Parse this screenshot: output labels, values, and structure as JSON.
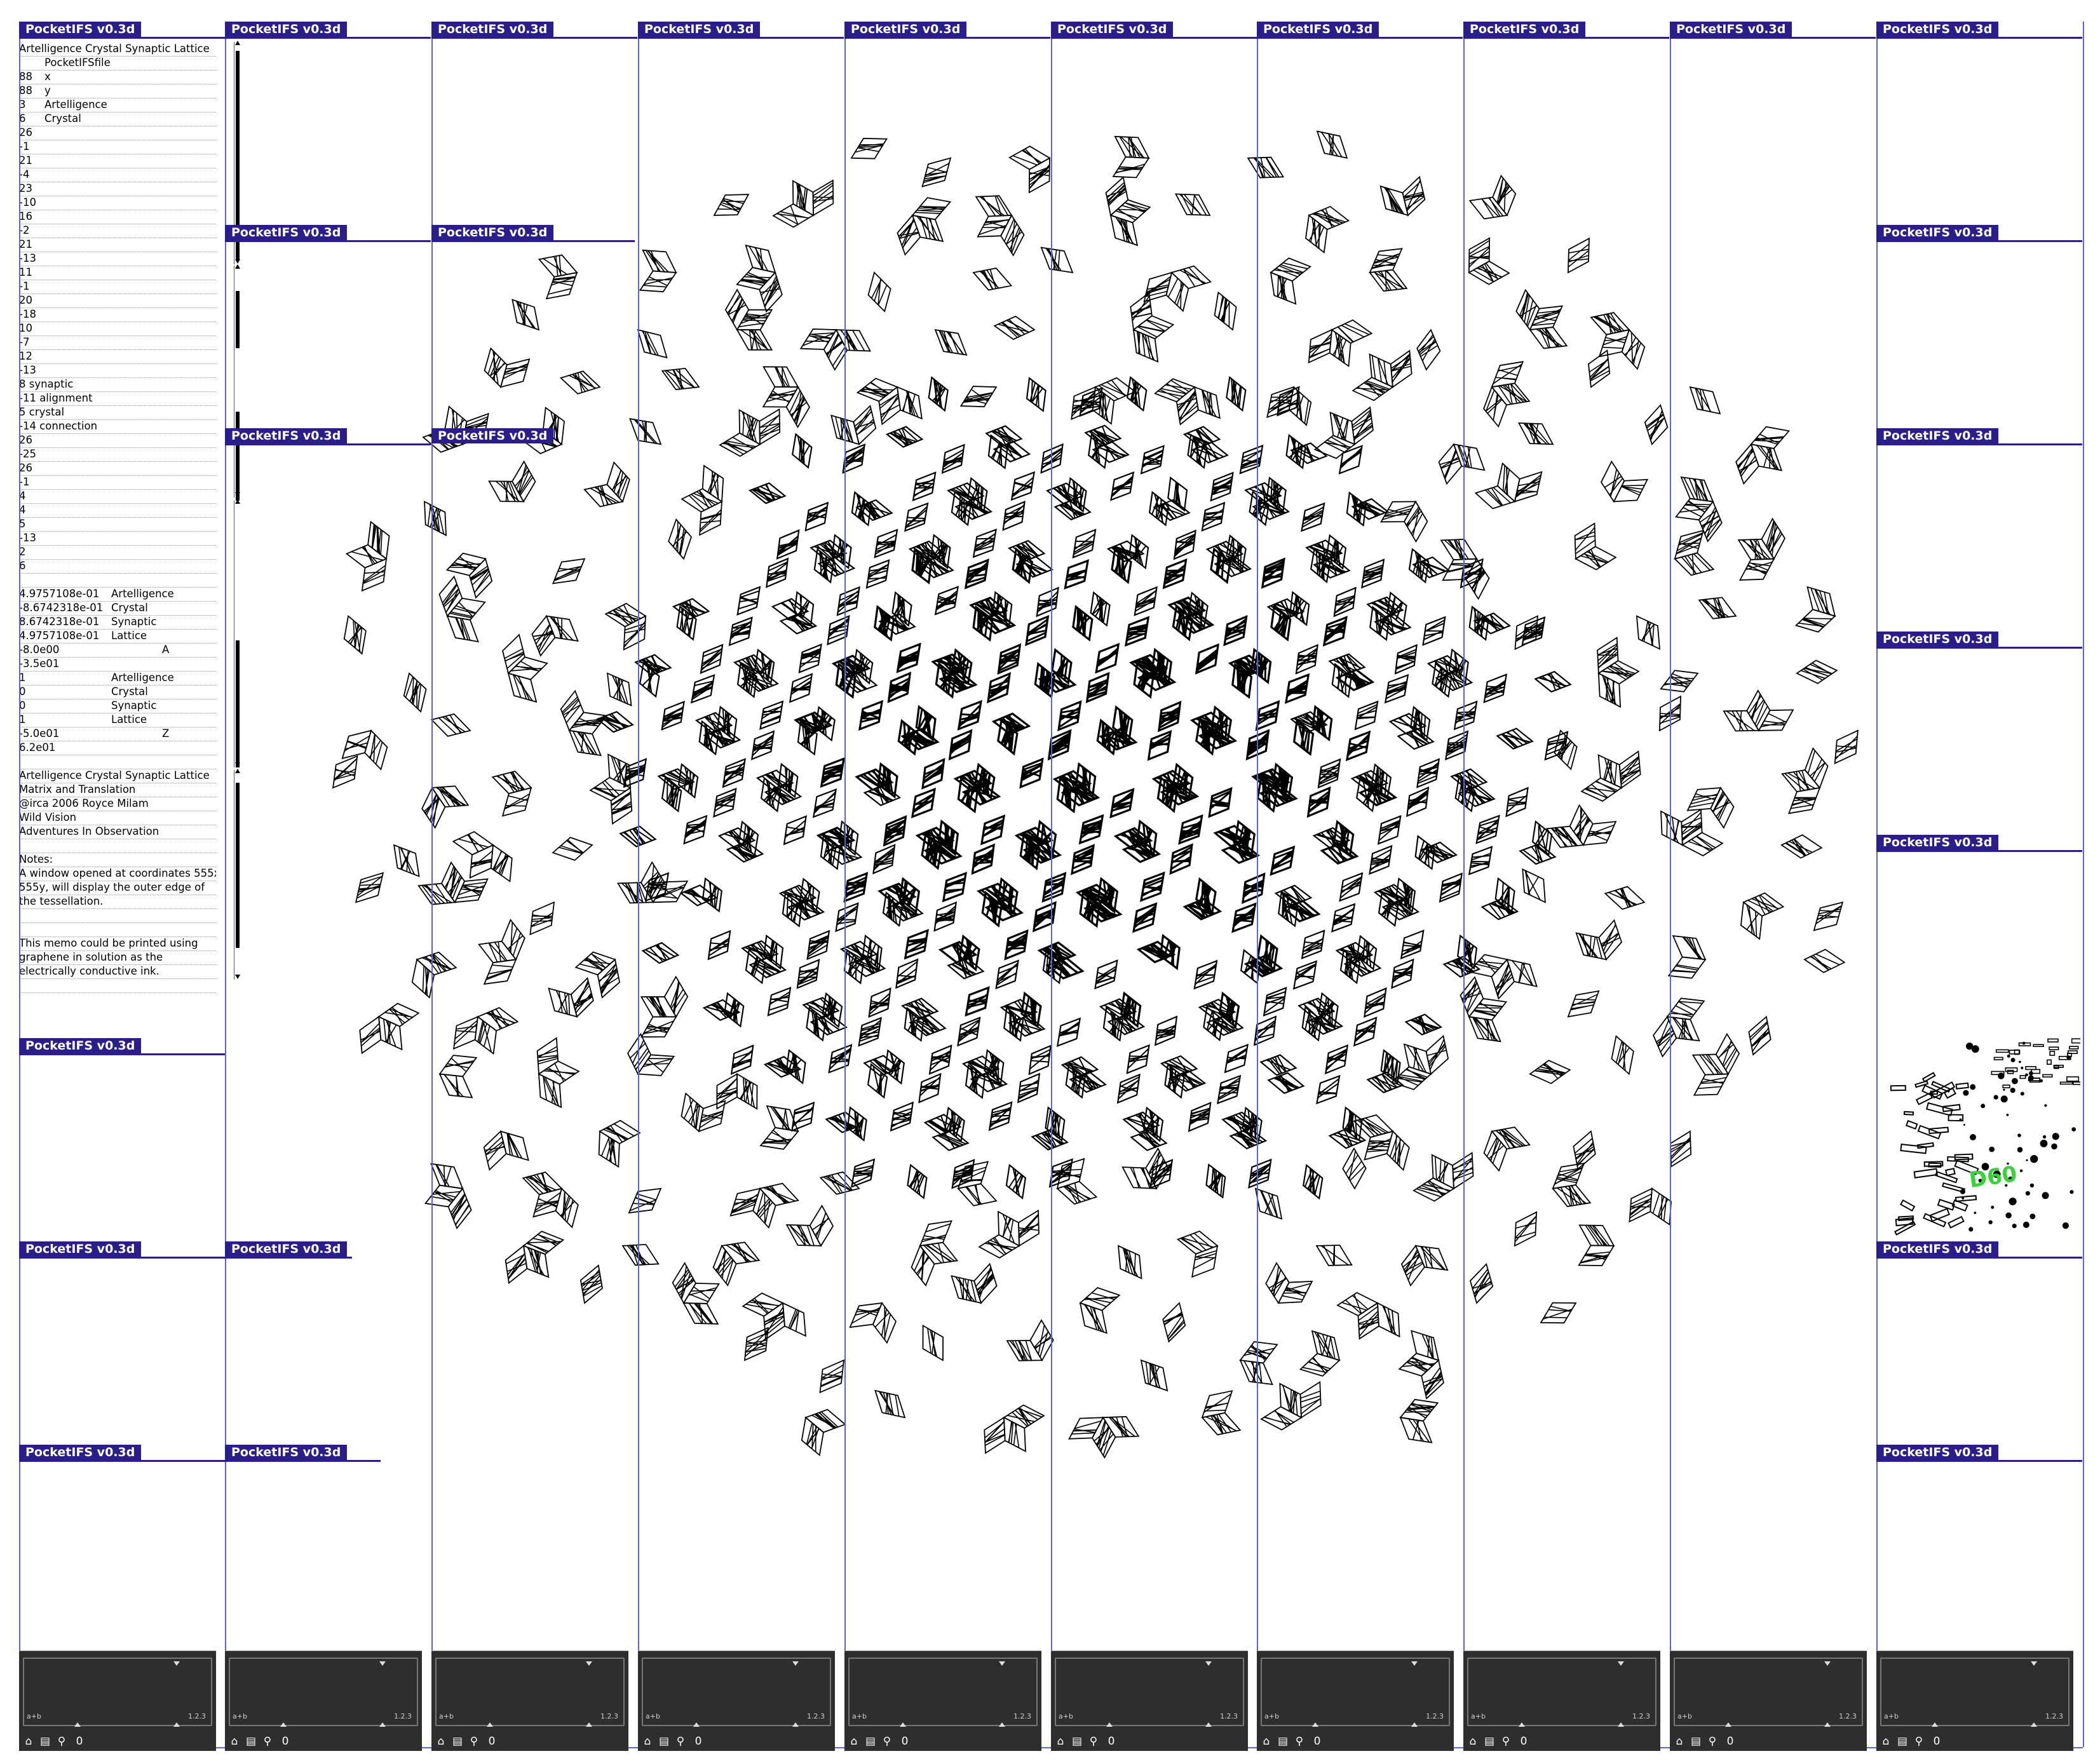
{
  "app": {
    "window_title": "PocketIFS v0.3d"
  },
  "memo": {
    "title": "Artelligence Crystal Synaptic Lattice",
    "rows": [
      [
        "",
        "PocketIFSfile",
        "",
        ""
      ],
      [
        "88",
        "x",
        "",
        ""
      ],
      [
        "88",
        "y",
        "",
        ""
      ],
      [
        "3",
        "Artelligence",
        "",
        ""
      ],
      [
        "6",
        "Crystal",
        "",
        ""
      ],
      [
        "26",
        "",
        "",
        ""
      ],
      [
        "-1",
        "",
        "",
        ""
      ],
      [
        "21",
        "",
        "",
        ""
      ],
      [
        "-4",
        "",
        "",
        ""
      ],
      [
        "23",
        "",
        "",
        ""
      ],
      [
        "-10",
        "",
        "",
        ""
      ],
      [
        "16",
        "",
        "",
        ""
      ],
      [
        "-2",
        "",
        "",
        ""
      ],
      [
        "21",
        "",
        "",
        ""
      ],
      [
        "-13",
        "",
        "",
        ""
      ],
      [
        "11",
        "",
        "",
        ""
      ],
      [
        "-1",
        "",
        "",
        ""
      ],
      [
        "20",
        "",
        "",
        ""
      ],
      [
        "-18",
        "",
        "",
        ""
      ],
      [
        "10",
        "",
        "",
        ""
      ],
      [
        "-7",
        "",
        "",
        ""
      ],
      [
        "12",
        "",
        "",
        ""
      ],
      [
        "-13",
        "",
        "",
        ""
      ],
      [
        "8  synaptic",
        "",
        "",
        ""
      ],
      [
        "-11  alignment",
        "",
        "",
        ""
      ],
      [
        "5  crystal",
        "",
        "",
        ""
      ],
      [
        "-14  connection",
        "",
        "",
        ""
      ],
      [
        "26",
        "",
        "",
        ""
      ],
      [
        "-25",
        "",
        "",
        ""
      ],
      [
        "26",
        "",
        "",
        ""
      ],
      [
        "-1",
        "",
        "",
        ""
      ],
      [
        "4",
        "",
        "",
        ""
      ],
      [
        "4",
        "",
        "",
        ""
      ],
      [
        "5",
        "",
        "",
        ""
      ],
      [
        "-13",
        "",
        "",
        ""
      ],
      [
        "2",
        "",
        "",
        ""
      ],
      [
        "6",
        "",
        "",
        ""
      ],
      [
        "",
        "",
        "",
        ""
      ],
      [
        "4.9757108e-01",
        "",
        "Artelligence",
        ""
      ],
      [
        "-8.6742318e-01",
        "",
        "Crystal",
        ""
      ],
      [
        "8.6742318e-01",
        "",
        "Synaptic",
        ""
      ],
      [
        "4.9757108e-01",
        "",
        "Lattice",
        ""
      ],
      [
        "-8.0e00",
        "",
        "",
        "A"
      ],
      [
        "-3.5e01",
        "",
        "",
        ""
      ],
      [
        "1",
        "",
        "Artelligence",
        ""
      ],
      [
        "0",
        "",
        "Crystal",
        ""
      ],
      [
        "0",
        "",
        "Synaptic",
        ""
      ],
      [
        "1",
        "",
        "Lattice",
        ""
      ],
      [
        "-5.0e01",
        "",
        "",
        "Z"
      ],
      [
        "6.2e01",
        "",
        "",
        ""
      ],
      [
        "",
        "",
        "",
        ""
      ],
      [
        "Artelligence Crystal Synaptic Lattice",
        "",
        "",
        ""
      ],
      [
        "Matrix and Translation",
        "",
        "",
        ""
      ],
      [
        "@irca  2006  Royce Milam",
        "",
        "",
        ""
      ],
      [
        "Wild Vision",
        "",
        "",
        ""
      ],
      [
        "Adventures In Observation",
        "",
        "",
        ""
      ],
      [
        "",
        "",
        "",
        ""
      ],
      [
        "Notes:",
        "",
        "",
        ""
      ],
      [
        "A window opened at coordinates 555x,",
        "",
        "",
        ""
      ],
      [
        "555y, will display the outer edge of",
        "",
        "",
        ""
      ],
      [
        "the tessellation.",
        "",
        "",
        ""
      ],
      [
        "",
        "",
        "",
        ""
      ],
      [
        "",
        "",
        "",
        ""
      ],
      [
        "This memo could be printed using",
        "",
        "",
        ""
      ],
      [
        "graphene in solution as the",
        "",
        "",
        ""
      ],
      [
        "electrically conductive ink.",
        "",
        "",
        ""
      ],
      [
        "",
        "",
        "",
        ""
      ]
    ]
  },
  "thumbnail": {
    "label": "D60",
    "label_color": "#39d23a"
  },
  "panel": {
    "left_label": "a+b",
    "right_label": "1.2.3",
    "number": "0"
  },
  "colors": {
    "title_bar": "#2a1f8a",
    "column_line": "#5b64c8",
    "panel_bg": "#2e2e2e"
  },
  "icons": [
    "home-icon",
    "file-icon",
    "magnifier-icon",
    "zero-digit"
  ]
}
